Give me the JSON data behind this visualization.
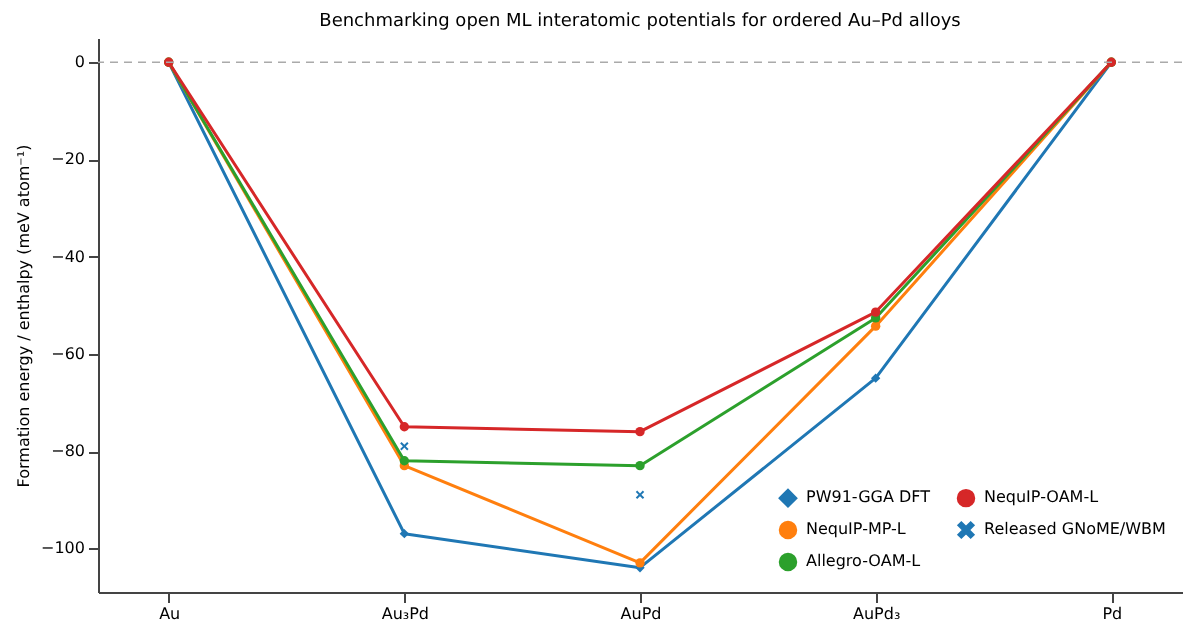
{
  "chart_data": {
    "type": "line",
    "title": "Benchmarking open ML interatomic potentials for ordered Au–Pd alloys",
    "ylabel": "Formation energy / enthalpy (meV atom⁻¹)",
    "categories": [
      "Au",
      "Au₃Pd",
      "AuPd",
      "AuPd₃",
      "Pd"
    ],
    "series": [
      {
        "name": "PW91-GGA DFT",
        "color": "#1f77b4",
        "marker": "diamond",
        "values": [
          0,
          -97,
          -104,
          -65,
          0
        ]
      },
      {
        "name": "NequIP-MP-L",
        "color": "#ff7f0e",
        "marker": "circle",
        "values": [
          0,
          -83,
          -103,
          -54.3,
          0
        ]
      },
      {
        "name": "Allegro-OAM-L",
        "color": "#2ca02c",
        "marker": "circle",
        "values": [
          0,
          -82,
          -83,
          -52.6,
          0
        ]
      },
      {
        "name": "NequIP-OAM-L",
        "color": "#d62728",
        "marker": "circle",
        "values": [
          0,
          -75,
          -76,
          -51.4,
          0
        ]
      },
      {
        "name": "Released GNoME/WBM",
        "color": "#1f77b4",
        "type": "scatter",
        "marker": "cross",
        "x": [
          "Au₃Pd",
          "AuPd"
        ],
        "values": [
          -79,
          -89
        ]
      }
    ],
    "ylim": [
      -109,
      5
    ],
    "yticks": [
      0,
      -20,
      -40,
      -60,
      -80,
      -100
    ],
    "ref_lines": [
      {
        "axis": "y",
        "value": 0,
        "color": "#aaaaaa",
        "line_style": "dashed"
      }
    ],
    "grid": false,
    "legend": "bottom right"
  }
}
